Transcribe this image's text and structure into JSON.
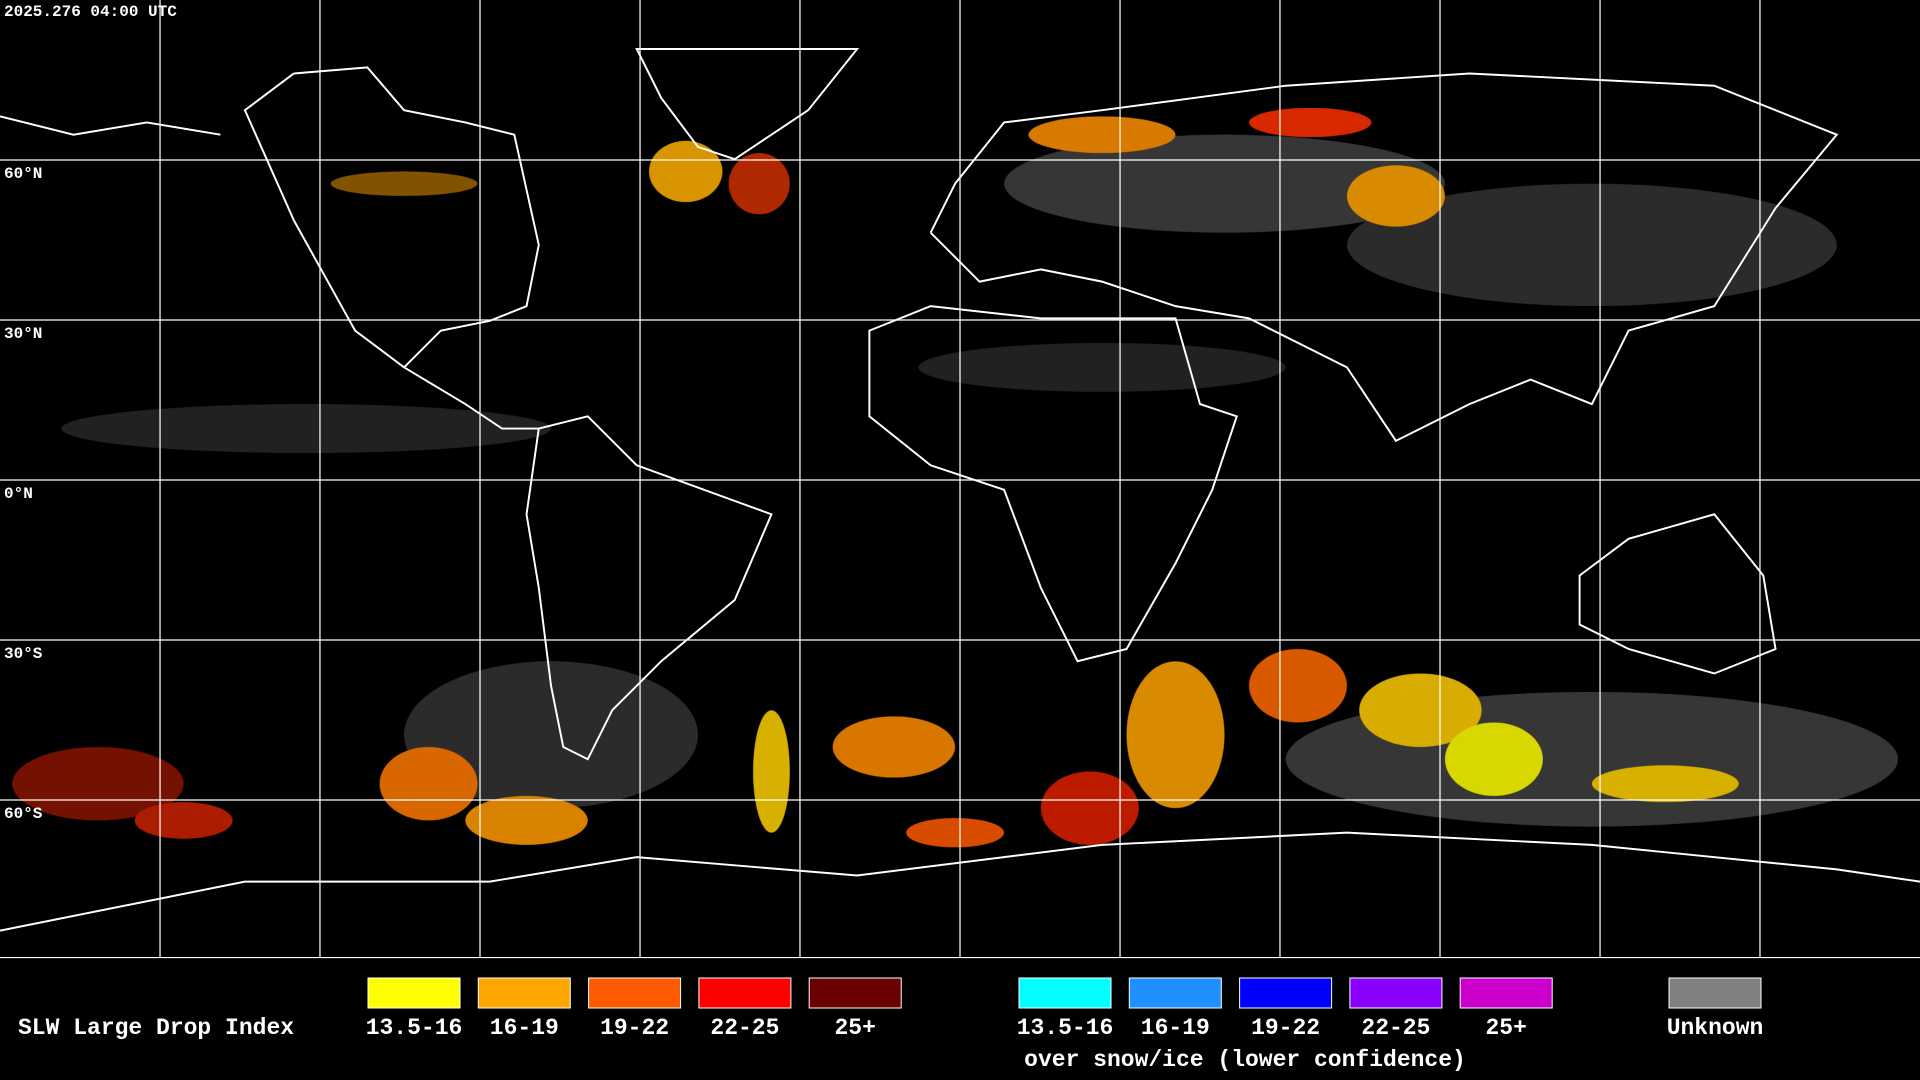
{
  "header": {
    "timestamp": "2025.276 04:00 UTC"
  },
  "map": {
    "lat_labels": [
      "60°N",
      "30°N",
      "0°N",
      "30°S",
      "60°S"
    ]
  },
  "legend": {
    "title": "SLW Large Drop Index",
    "groups": [
      {
        "items": [
          {
            "label": "13.5-16",
            "color": "#ffff00"
          },
          {
            "label": "16-19",
            "color": "#ffa500"
          },
          {
            "label": "19-22",
            "color": "#ff5a00"
          },
          {
            "label": "22-25",
            "color": "#ff0000"
          },
          {
            "label": "25+",
            "color": "#6a0000"
          }
        ]
      },
      {
        "items": [
          {
            "label": "13.5-16",
            "color": "#00ffff"
          },
          {
            "label": "16-19",
            "color": "#1e90ff"
          },
          {
            "label": "19-22",
            "color": "#0000ff"
          },
          {
            "label": "22-25",
            "color": "#8a00ff"
          },
          {
            "label": "25+",
            "color": "#cc00cc"
          }
        ],
        "caption": "over snow/ice (lower confidence)"
      }
    ],
    "unknown": {
      "label": "Unknown",
      "color": "#808080"
    }
  }
}
